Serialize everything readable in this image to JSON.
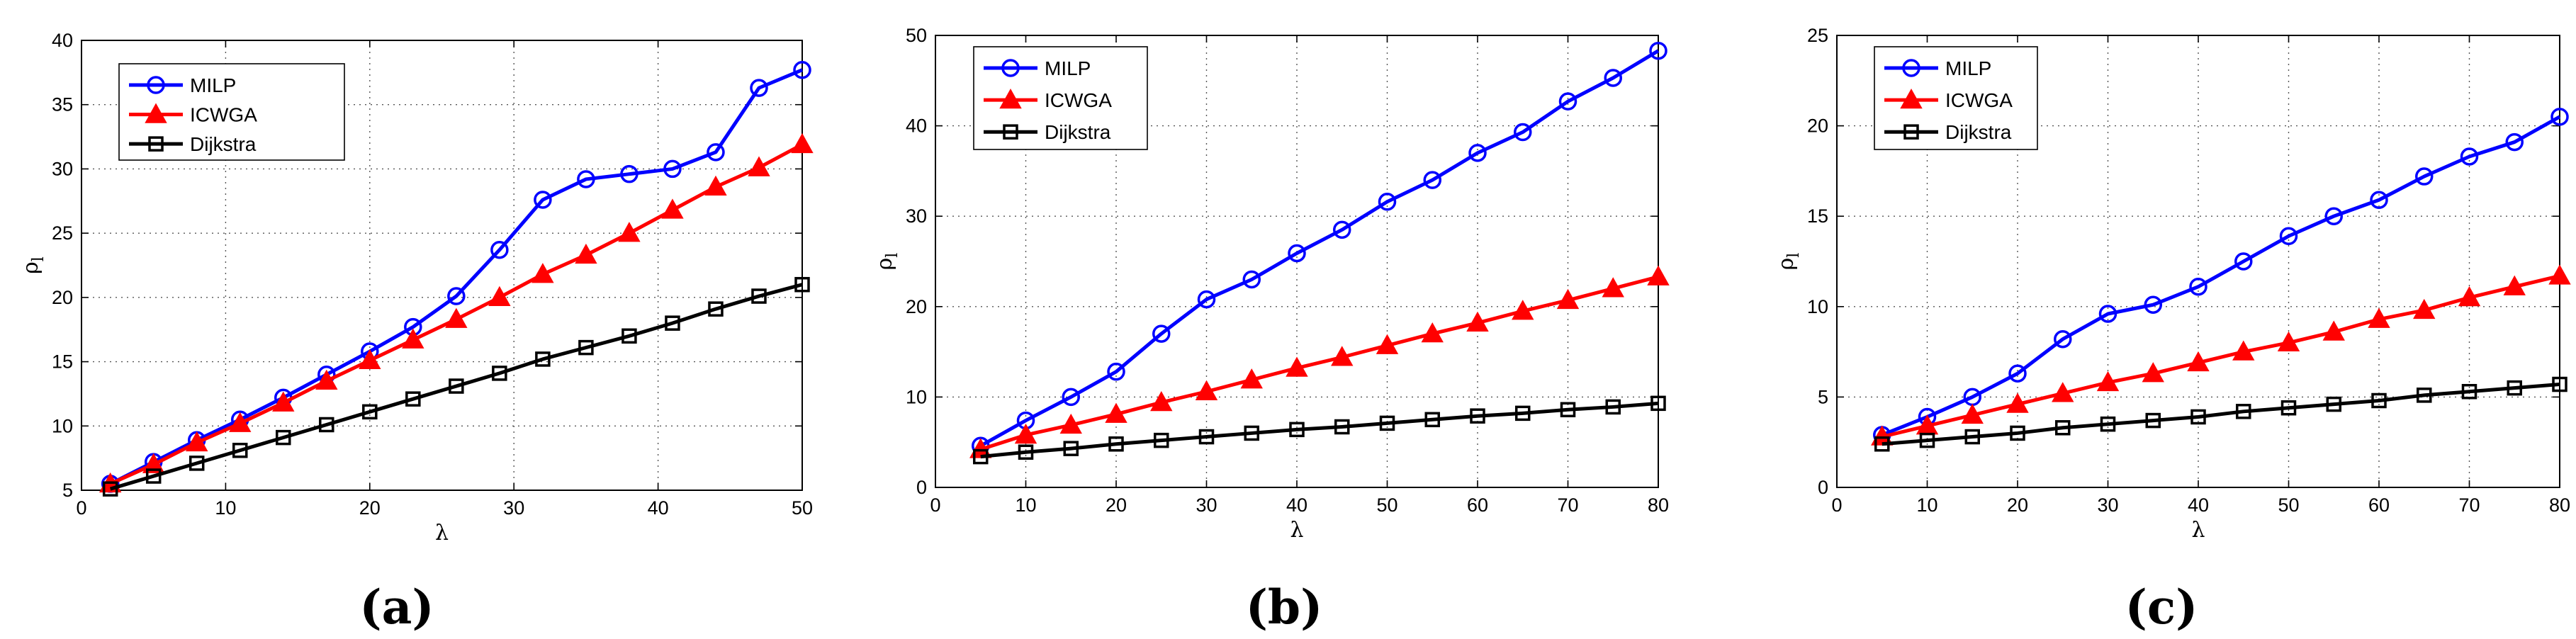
{
  "figure": {
    "panel_labels": [
      "(a)",
      "(b)",
      "(c)"
    ]
  },
  "chart_data": [
    {
      "type": "line",
      "panel": "(a)",
      "xlabel": "λ",
      "ylabel": "ρ",
      "ylabel_sub": "l",
      "xlim": [
        0,
        50
      ],
      "ylim": [
        5,
        40
      ],
      "xticks": [
        0,
        10,
        20,
        30,
        40,
        50
      ],
      "yticks": [
        5,
        10,
        15,
        20,
        25,
        30,
        35,
        40
      ],
      "grid": true,
      "legend": "top-left",
      "x": [
        2,
        5,
        8,
        11,
        14,
        17,
        20,
        23,
        26,
        29,
        32,
        35,
        38,
        41,
        44,
        47,
        50
      ],
      "series": [
        {
          "name": "MILP",
          "color": "#0000ff",
          "marker": "circle",
          "values": [
            5.5,
            7.2,
            8.9,
            10.5,
            12.2,
            14.0,
            15.8,
            17.7,
            20.1,
            23.7,
            27.6,
            29.2,
            29.6,
            30.0,
            31.3,
            36.3,
            37.7
          ]
        },
        {
          "name": "ICWGA",
          "color": "#ff0000",
          "marker": "triangle",
          "values": [
            5.5,
            7.0,
            8.7,
            10.2,
            11.8,
            13.5,
            15.1,
            16.7,
            18.3,
            20.0,
            21.8,
            23.3,
            25.0,
            26.8,
            28.6,
            30.1,
            31.9
          ]
        },
        {
          "name": "Dijkstra",
          "color": "#000000",
          "marker": "square",
          "values": [
            5.1,
            6.1,
            7.1,
            8.1,
            9.1,
            10.1,
            11.1,
            12.1,
            13.1,
            14.1,
            15.2,
            16.1,
            17.0,
            18.0,
            19.1,
            20.1,
            21.0
          ]
        }
      ]
    },
    {
      "type": "line",
      "panel": "(b)",
      "xlabel": "λ",
      "ylabel": "ρ",
      "ylabel_sub": "l",
      "xlim": [
        0,
        80
      ],
      "ylim": [
        0,
        50
      ],
      "xticks": [
        0,
        10,
        20,
        30,
        40,
        50,
        60,
        70,
        80
      ],
      "yticks": [
        0,
        10,
        20,
        30,
        40,
        50
      ],
      "grid": true,
      "legend": "top-left",
      "x": [
        5,
        10,
        15,
        20,
        25,
        30,
        35,
        40,
        45,
        50,
        55,
        60,
        65,
        70,
        75,
        80
      ],
      "series": [
        {
          "name": "MILP",
          "color": "#0000ff",
          "marker": "circle",
          "values": [
            4.6,
            7.4,
            10.0,
            12.8,
            17.0,
            20.8,
            23.0,
            25.9,
            28.5,
            31.6,
            34.0,
            37.0,
            39.3,
            42.7,
            45.3,
            48.3
          ]
        },
        {
          "name": "ICWGA",
          "color": "#ff0000",
          "marker": "triangle",
          "values": [
            4.2,
            5.8,
            6.9,
            8.1,
            9.4,
            10.6,
            11.9,
            13.2,
            14.4,
            15.7,
            17.0,
            18.2,
            19.5,
            20.7,
            22.0,
            23.3
          ]
        },
        {
          "name": "Dijkstra",
          "color": "#000000",
          "marker": "square",
          "values": [
            3.4,
            3.9,
            4.3,
            4.8,
            5.2,
            5.6,
            6.0,
            6.4,
            6.7,
            7.1,
            7.5,
            7.9,
            8.2,
            8.6,
            8.9,
            9.3
          ]
        }
      ]
    },
    {
      "type": "line",
      "panel": "(c)",
      "xlabel": "λ",
      "ylabel": "ρ",
      "ylabel_sub": "l",
      "xlim": [
        0,
        80
      ],
      "ylim": [
        0,
        25
      ],
      "xticks": [
        0,
        10,
        20,
        30,
        40,
        50,
        60,
        70,
        80
      ],
      "yticks": [
        0,
        5,
        10,
        15,
        20,
        25
      ],
      "grid": true,
      "legend": "top-left",
      "x": [
        5,
        10,
        15,
        20,
        25,
        30,
        35,
        40,
        45,
        50,
        55,
        60,
        65,
        70,
        75,
        80
      ],
      "series": [
        {
          "name": "MILP",
          "color": "#0000ff",
          "marker": "circle",
          "values": [
            2.9,
            3.9,
            5.0,
            6.3,
            8.2,
            9.6,
            10.1,
            11.1,
            12.5,
            13.9,
            15.0,
            15.9,
            17.2,
            18.3,
            19.1,
            20.5
          ]
        },
        {
          "name": "ICWGA",
          "color": "#ff0000",
          "marker": "triangle",
          "values": [
            2.8,
            3.4,
            4.0,
            4.6,
            5.2,
            5.8,
            6.3,
            6.9,
            7.5,
            8.0,
            8.6,
            9.3,
            9.8,
            10.5,
            11.1,
            11.7
          ]
        },
        {
          "name": "Dijkstra",
          "color": "#000000",
          "marker": "square",
          "values": [
            2.4,
            2.6,
            2.8,
            3.0,
            3.3,
            3.5,
            3.7,
            3.9,
            4.2,
            4.4,
            4.6,
            4.8,
            5.1,
            5.3,
            5.5,
            5.7
          ]
        }
      ]
    }
  ]
}
